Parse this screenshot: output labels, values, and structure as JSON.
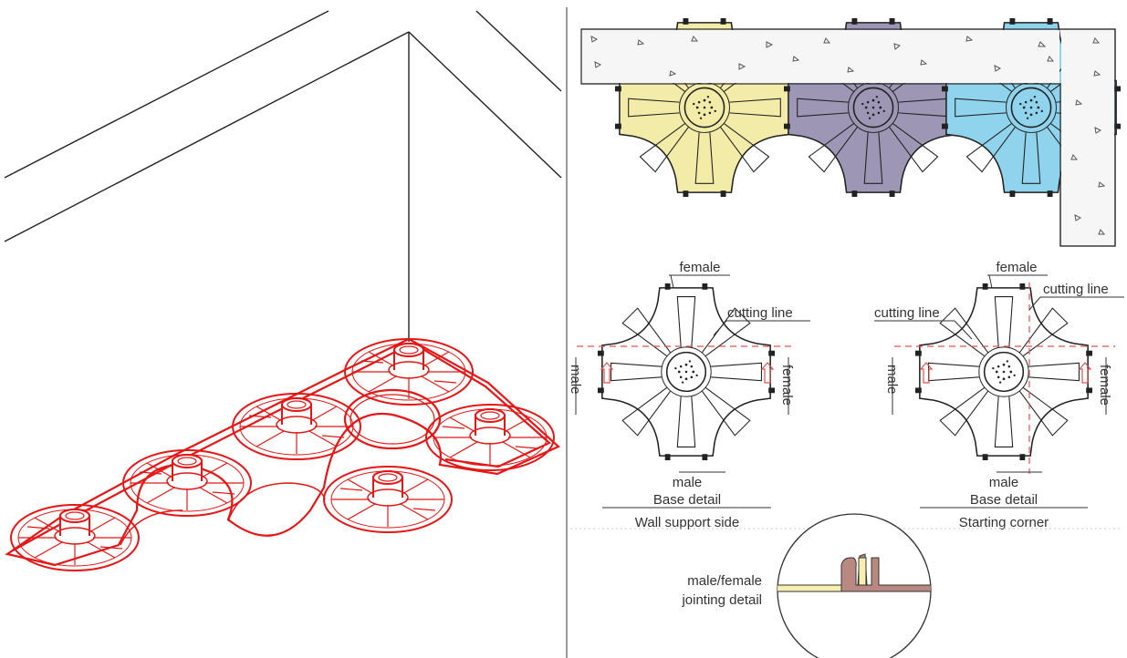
{
  "colors": {
    "linework": "#222222",
    "isometric_red": "#e51616",
    "concrete_fill": "#f4f4f4",
    "tile_yellow": "#f3eca8",
    "tile_purple": "#9d96b4",
    "tile_blue": "#8fd3ec",
    "joint_yellow": "#f6efb0",
    "joint_brown": "#b98880",
    "guide_red": "#e05050"
  },
  "wall_plan": {
    "tiles": [
      {
        "color_key": "tile_yellow"
      },
      {
        "color_key": "tile_purple"
      },
      {
        "color_key": "tile_blue"
      }
    ]
  },
  "details": [
    {
      "id": "wall-support",
      "top_label": "female",
      "cutting_label": "cutting line",
      "left_label": "male",
      "right_label": "female",
      "bottom_label": "male",
      "title": "Base detail",
      "subtitle": "Wall support side"
    },
    {
      "id": "starting-corner",
      "top_label": "female",
      "cutting_label_top": "cutting line",
      "cutting_label_left": "cutting line",
      "left_label": "male",
      "right_label": "female",
      "bottom_label": "male",
      "title": "Base detail",
      "subtitle": "Starting corner"
    }
  ],
  "jointing": {
    "label_line1": "male/female",
    "label_line2": "jointing detail"
  }
}
